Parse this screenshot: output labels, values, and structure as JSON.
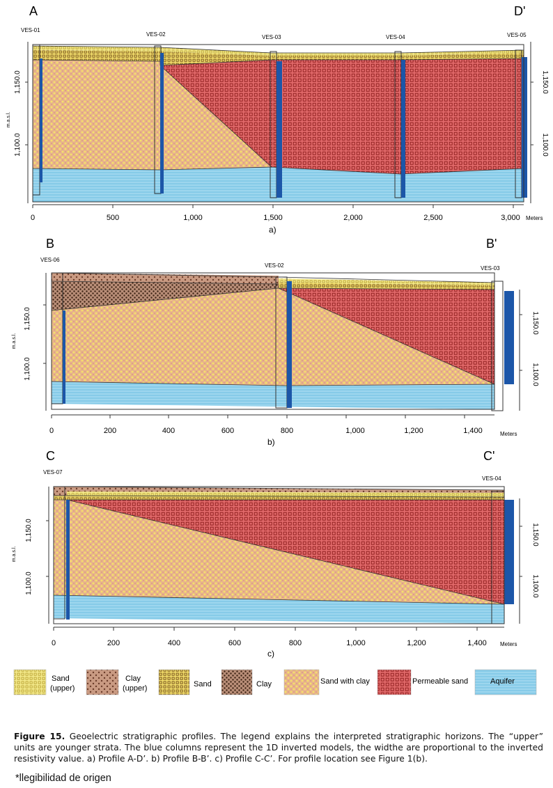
{
  "profiles": [
    {
      "id": "a",
      "start_label": "A",
      "end_label": "D'",
      "ves": [
        "VES-01",
        "VES-02",
        "VES-03",
        "VES-04",
        "VES-05"
      ],
      "x_ticks": [
        "0",
        "500",
        "1,000",
        "1,500",
        "2,000",
        "2,500",
        "3,000"
      ],
      "x_unit": "Meters",
      "y_ticks": [
        "1,150.0",
        "1,100.0"
      ],
      "y_label": "m.a.s.l.",
      "panel_label": "a)"
    },
    {
      "id": "b",
      "start_label": "B",
      "end_label": "B'",
      "ves": [
        "VES-06",
        "VES-02",
        "VES-03"
      ],
      "x_ticks": [
        "0",
        "200",
        "400",
        "600",
        "800",
        "1,000",
        "1,200",
        "1,400"
      ],
      "x_unit": "Meters",
      "y_ticks": [
        "1,150.0",
        "1,100.0"
      ],
      "y_label": "m.a.s.l.",
      "panel_label": "b)"
    },
    {
      "id": "c",
      "start_label": "C",
      "end_label": "C'",
      "ves": [
        "VES-07",
        "VES-04"
      ],
      "x_ticks": [
        "0",
        "200",
        "400",
        "600",
        "800",
        "1,000",
        "1,200",
        "1,400"
      ],
      "x_unit": "Meters",
      "y_ticks": [
        "1,150.0",
        "1,100.0"
      ],
      "y_label": "m.a.s.l.",
      "panel_label": "c)"
    }
  ],
  "legend": [
    {
      "key": "sand_upper",
      "label": "Sand",
      "sublabel": "(upper)"
    },
    {
      "key": "clay_upper",
      "label": "Clay",
      "sublabel": "(upper)"
    },
    {
      "key": "sand",
      "label": "Sand",
      "sublabel": ""
    },
    {
      "key": "clay",
      "label": "Clay",
      "sublabel": ""
    },
    {
      "key": "sand_clay",
      "label": "Sand with clay",
      "sublabel": ""
    },
    {
      "key": "permeable",
      "label": "Permeable sand",
      "sublabel": ""
    },
    {
      "key": "aquifer",
      "label": "Aquifer",
      "sublabel": ""
    }
  ],
  "caption": {
    "label": "Figure 15.",
    "text": " Geoelectric stratigraphic profiles. The legend explains the interpreted stratigraphic horizons. The “upper” units are younger strata. The blue columns represent the 1D inverted models, the widthe are proportional to the inverted resistivity value. a) Profile A-D’. b) Profile B-B’. c) Profile C-C’. For profile location see Figure 1(b)."
  },
  "note": "*llegibilidad de origen",
  "colors": {
    "sand_bg": "#f3e98a",
    "clay_bg": "#c99a82",
    "sand_clay_bg": "#e8b58a",
    "sand_clay_dot": "#f5e36a",
    "permeable_bg": "#e1696a",
    "aquifer_bg": "#86cbe8",
    "column_blue": "#1c56a8",
    "outline": "#333333"
  }
}
